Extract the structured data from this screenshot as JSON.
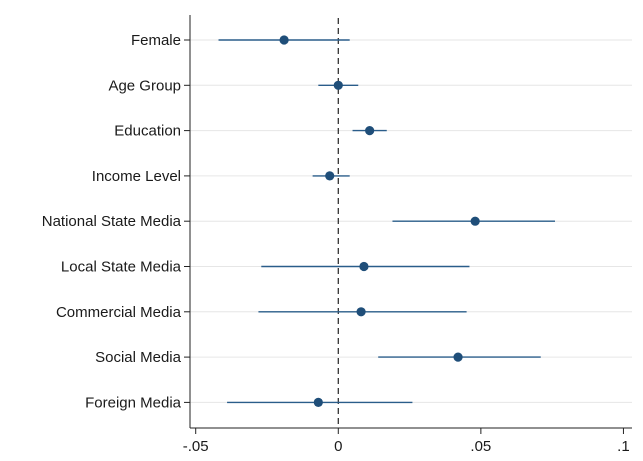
{
  "chart_data": {
    "type": "scatter",
    "subtype": "coefficient-plot",
    "orientation": "horizontal",
    "title": "",
    "xlabel": "",
    "ylabel": "",
    "categories": [
      "Female",
      "Age Group",
      "Education",
      "Income Level",
      "National State Media",
      "Local State Media",
      "Commercial Media",
      "Social Media",
      "Foreign Media"
    ],
    "estimates": [
      -0.019,
      0.0,
      0.011,
      -0.003,
      0.048,
      0.009,
      0.008,
      0.042,
      -0.007
    ],
    "ci_low": [
      -0.042,
      -0.007,
      0.005,
      -0.009,
      0.019,
      -0.027,
      -0.028,
      0.014,
      -0.039
    ],
    "ci_high": [
      0.004,
      0.007,
      0.017,
      0.004,
      0.076,
      0.046,
      0.045,
      0.071,
      0.026
    ],
    "xlim": [
      -0.052,
      0.103
    ],
    "xticks": [
      -0.05,
      0,
      0.05,
      0.1
    ],
    "xtick_labels": [
      "-.05",
      "0",
      ".05",
      ".1"
    ],
    "reference_line": 0,
    "grid": "horizontal",
    "colors": {
      "marker": "#1f4e79",
      "ci": "#2a5d8a",
      "grid": "#e6e6e6",
      "reference": "#222222"
    }
  }
}
